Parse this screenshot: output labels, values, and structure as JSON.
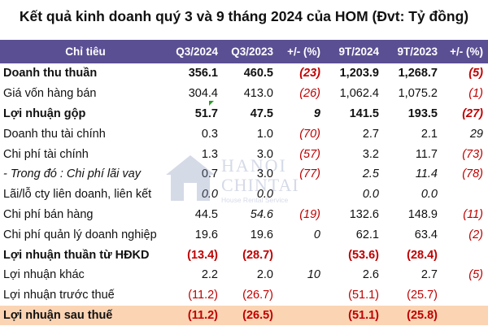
{
  "title": "Kết quả kinh doanh quý 3 và 9 tháng 2024 của HOM (Đvt: Tỷ đồng)",
  "columns": [
    "Chỉ tiêu",
    "Q3/2024",
    "Q3/2023",
    "+/- (%)",
    "9T/2024",
    "9T/2023",
    "+/- (%)"
  ],
  "rows": [
    {
      "label": "Doanh thu thuần",
      "cells": [
        "356.1",
        "460.5",
        "(23)",
        "1,203.9",
        "1,268.7",
        "(5)"
      ]
    },
    {
      "label": "Giá vốn hàng bán",
      "cells": [
        "304.4",
        "413.0",
        "(26)",
        "1,062.4",
        "1,075.2",
        "(1)"
      ]
    },
    {
      "label": "Lợi nhuận gộp",
      "cells": [
        "51.7",
        "47.5",
        "9",
        "141.5",
        "193.5",
        "(27)"
      ]
    },
    {
      "label": "Doanh thu tài chính",
      "cells": [
        "0.3",
        "1.0",
        "(70)",
        "2.7",
        "2.1",
        "29"
      ]
    },
    {
      "label": "Chi phí tài chính",
      "cells": [
        "1.3",
        "3.0",
        "(57)",
        "3.2",
        "11.7",
        "(73)"
      ]
    },
    {
      "label": "- Trong đó : Chi phí lãi vay",
      "cells": [
        "0.7",
        "3.0",
        "(77)",
        "2.5",
        "11.4",
        "(78)"
      ]
    },
    {
      "label": "Lãi/lỗ cty liên doanh, liên kết",
      "cells": [
        "0.0",
        "0.0",
        "",
        "0.0",
        "0.0",
        ""
      ]
    },
    {
      "label": "Chi phí bán hàng",
      "cells": [
        "44.5",
        "54.6",
        "(19)",
        "132.6",
        "148.9",
        "(11)"
      ]
    },
    {
      "label": "Chi phí quản lý doanh nghiệp",
      "cells": [
        "19.6",
        "19.6",
        "0",
        "62.1",
        "63.4",
        "(2)"
      ]
    },
    {
      "label": "Lợi nhuận thuần từ HĐKD",
      "cells": [
        "(13.4)",
        "(28.7)",
        "",
        "(53.6)",
        "(28.4)",
        ""
      ]
    },
    {
      "label": "Lợi nhuận khác",
      "cells": [
        "2.2",
        "2.0",
        "10",
        "2.6",
        "2.7",
        "(5)"
      ]
    },
    {
      "label": "Lợi nhuận trước thuế",
      "cells": [
        "(11.2)",
        "(26.7)",
        "",
        "(51.1)",
        "(25.7)",
        ""
      ]
    },
    {
      "label": "Lợi nhuận sau thuế",
      "cells": [
        "(11.2)",
        "(26.5)",
        "",
        "(51.1)",
        "(25.8)",
        ""
      ]
    }
  ],
  "watermark": {
    "line1": "HANOI",
    "line2": "CHINTAI",
    "line3": "House Rental Service"
  },
  "colors": {
    "header_bg": "#5b4f93",
    "highlight_bg": "#fbd4b4",
    "negative": "#c00000"
  }
}
